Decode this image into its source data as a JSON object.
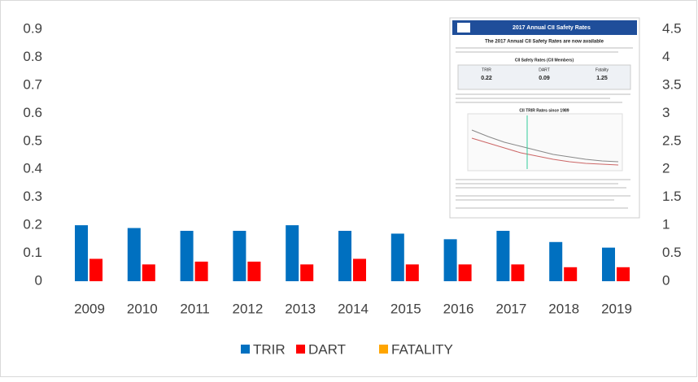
{
  "chart_data": {
    "type": "bar",
    "categories": [
      "2009",
      "2010",
      "2011",
      "2012",
      "2013",
      "2014",
      "2015",
      "2016",
      "2017",
      "2018",
      "2019"
    ],
    "series": [
      {
        "name": "TRIR",
        "color": "#0070c0",
        "values": [
          0.2,
          0.19,
          0.18,
          0.18,
          0.2,
          0.18,
          0.17,
          0.15,
          0.18,
          0.14,
          0.12
        ]
      },
      {
        "name": "DART",
        "color": "#ff0000",
        "values": [
          0.08,
          0.06,
          0.07,
          0.07,
          0.06,
          0.08,
          0.06,
          0.06,
          0.06,
          0.05,
          0.05
        ]
      },
      {
        "name": "FATALITY",
        "color": "#ffa500",
        "axis": "y2",
        "values": [
          0,
          0,
          0,
          0,
          0,
          0,
          0,
          0,
          0,
          0,
          0
        ]
      }
    ],
    "ylim": [
      0,
      0.9
    ],
    "yticks": [
      0,
      0.1,
      0.2,
      0.3,
      0.4,
      0.5,
      0.6,
      0.7,
      0.8,
      0.9
    ],
    "y2lim": [
      0,
      4.5
    ],
    "y2ticks": [
      0,
      0.5,
      1,
      1.5,
      2,
      2.5,
      3,
      3.5,
      4,
      4.5
    ],
    "grid": false,
    "legend": "bottom"
  },
  "inset": {
    "banner": "2017 Annual CII Safety Rates",
    "heading": "The 2017 Annual CII Safety Rates are now available",
    "table_title": "CII Safety Rates (CII Members)",
    "rates": [
      {
        "label": "TRIR",
        "value": "0.22"
      },
      {
        "label": "DART",
        "value": "0.09"
      },
      {
        "label": "Fatality",
        "value": "1.25"
      }
    ],
    "chart_title": "CII TRIR Rates since 1989"
  }
}
